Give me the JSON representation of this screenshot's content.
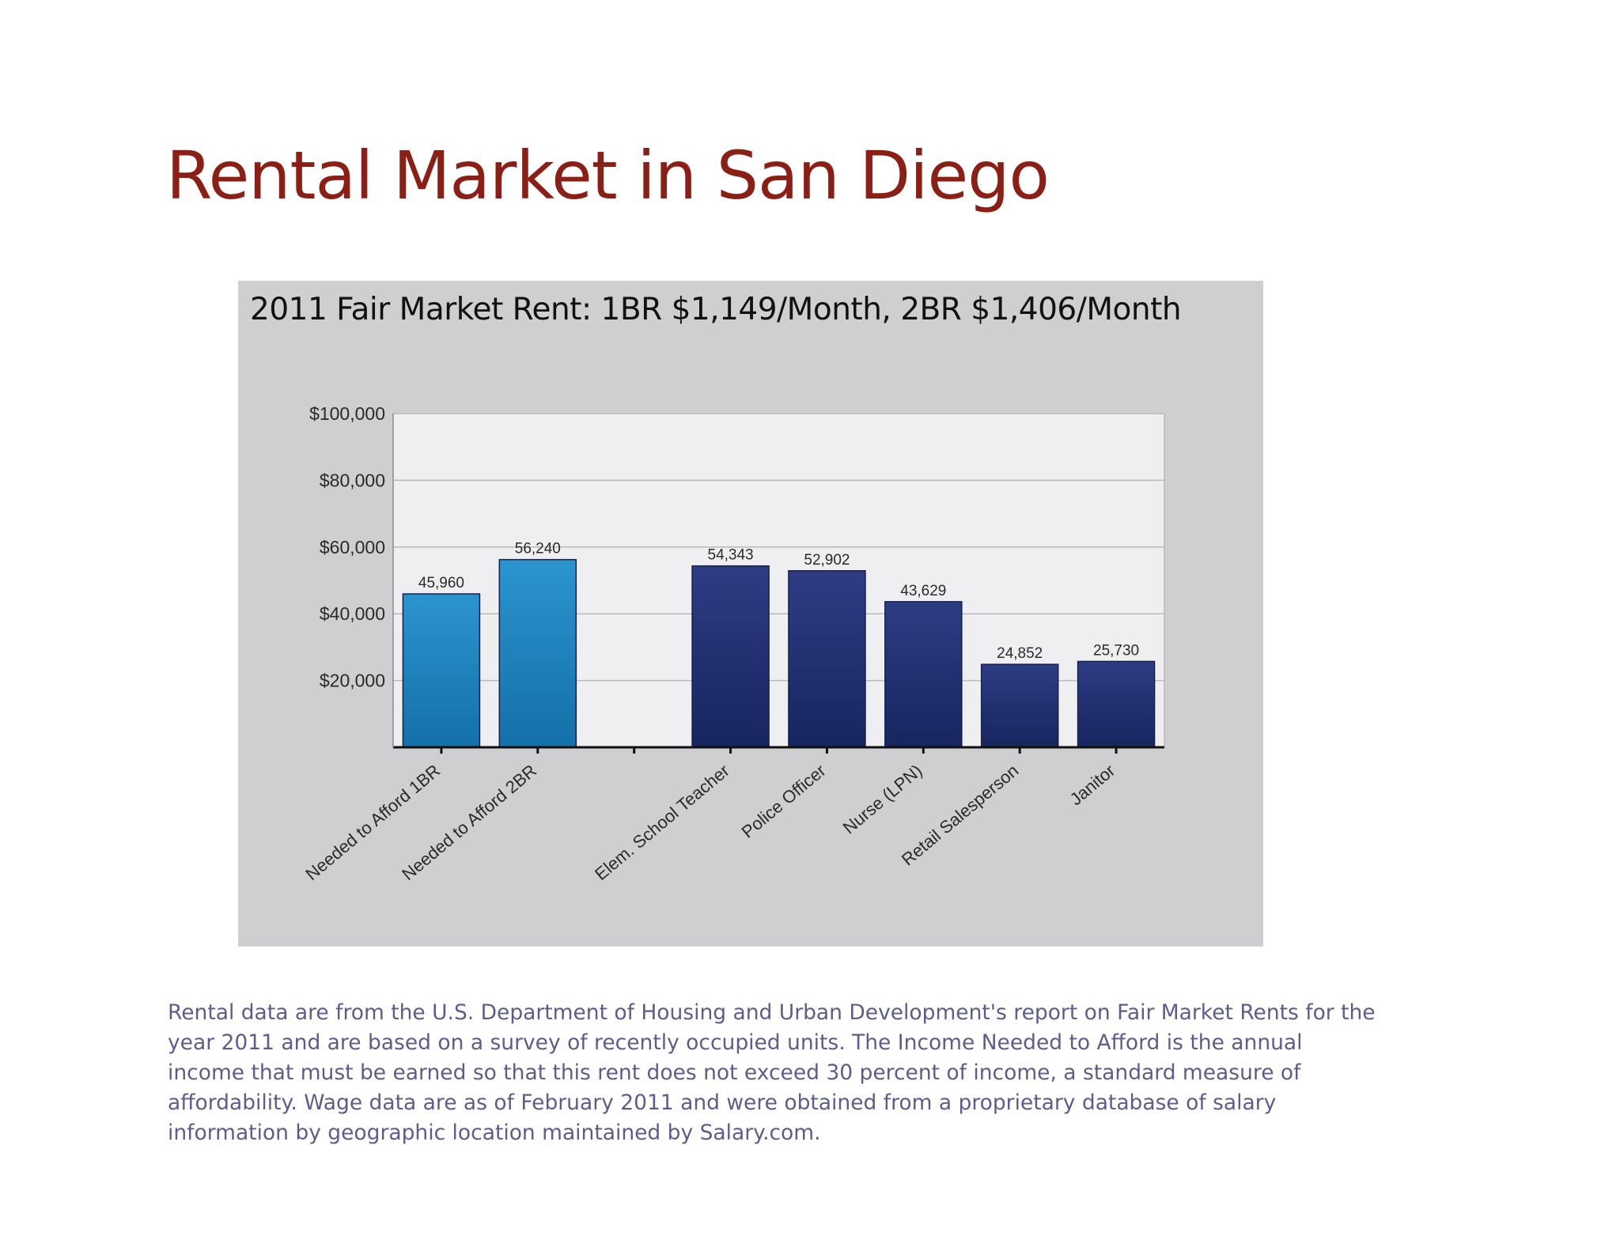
{
  "slide": {
    "title": "Rental Market in San Diego",
    "title_color": "#8b1f15",
    "footnote": "Rental data are from the U.S. Department of Housing and Urban Development's report on Fair Market Rents for the year 2011 and are based on a survey of recently occupied units.  The Income Needed to Afford is the annual income that must be earned so that this rent does not exceed 30 percent of income, a standard measure of affordability. Wage data are as of February 2011 and were obtained from a proprietary database of salary information by geographic location maintained by Salary.com.",
    "footnote_color": "#5d5c8e"
  },
  "chart_data": {
    "type": "bar",
    "title": "2011 Fair Market Rent: 1BR $1,149/Month, 2BR $1,406/Month",
    "categories": [
      "Needed to Afford 1BR",
      "Needed to Afford 2BR",
      "",
      "Elem. School Teacher",
      "Police Officer",
      "Nurse (LPN)",
      "Retail Salesperson",
      "Janitor"
    ],
    "values": [
      45960,
      56240,
      null,
      54343,
      52902,
      43629,
      24852,
      25730
    ],
    "value_labels": [
      "45,960",
      "56,240",
      "",
      "54,343",
      "52,902",
      "43,629",
      "24,852",
      "25,730"
    ],
    "bar_groups": [
      "needed",
      "needed",
      "none",
      "wage",
      "wage",
      "wage",
      "wage",
      "wage"
    ],
    "y_ticks": [
      20000,
      40000,
      60000,
      80000,
      100000
    ],
    "y_tick_labels": [
      "$20,000",
      "$40,000",
      "$60,000",
      "$80,000",
      "$100,000"
    ],
    "ylim": [
      0,
      100000
    ],
    "grid": true,
    "legend": "none",
    "colors": {
      "needed_top": "#2b94cf",
      "needed_bottom": "#1470a8",
      "wage_top": "#2e3c84",
      "wage_bottom": "#172560",
      "plot_background": "#efeff1",
      "panel_background": "#cfced0"
    }
  }
}
